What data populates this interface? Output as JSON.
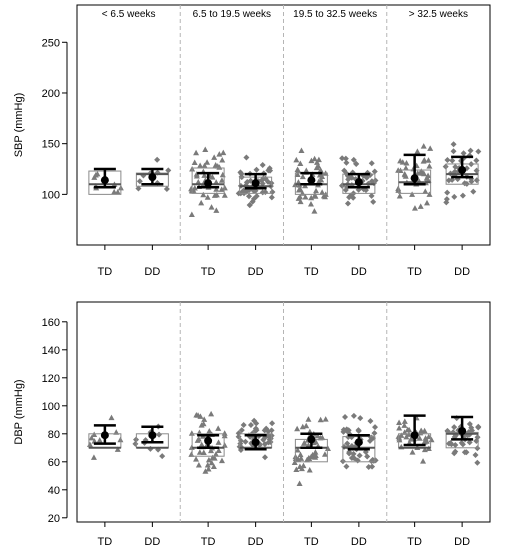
{
  "chart_data": [
    {
      "type": "boxplot",
      "ylabel": "SBP (mmHg)",
      "ylim": [
        55,
        270
      ],
      "yticks": [
        100,
        150,
        200,
        250
      ],
      "groups": [
        "< 6.5 weeks",
        "6.5 to 19.5 weeks",
        "19.5 to 32.5 weeks",
        "> 32.5 weeks"
      ],
      "categories": [
        "TD",
        "DD",
        "TD",
        "DD",
        "TD",
        "DD",
        "TD",
        "DD"
      ],
      "boxes": [
        {
          "group": "< 6.5 weeks",
          "category": "TD",
          "q1": 100,
          "median": 110,
          "q3": 123,
          "mean": 114,
          "ci_low": 107,
          "ci_high": 125
        },
        {
          "group": "< 6.5 weeks",
          "category": "DD",
          "q1": 108,
          "median": 120,
          "q3": 121,
          "mean": 117,
          "ci_low": 110,
          "ci_high": 125
        },
        {
          "group": "6.5 to 19.5 weeks",
          "category": "TD",
          "q1": 101,
          "median": 110,
          "q3": 126,
          "mean": 111,
          "ci_low": 107,
          "ci_high": 121
        },
        {
          "group": "6.5 to 19.5 weeks",
          "category": "DD",
          "q1": 101,
          "median": 108,
          "q3": 117,
          "mean": 111,
          "ci_low": 106,
          "ci_high": 120
        },
        {
          "group": "19.5 to 32.5 weeks",
          "category": "TD",
          "q1": 100,
          "median": 110,
          "q3": 121,
          "mean": 114,
          "ci_low": 110,
          "ci_high": 121
        },
        {
          "group": "19.5 to 32.5 weeks",
          "category": "DD",
          "q1": 101,
          "median": 110,
          "q3": 120,
          "mean": 112,
          "ci_low": 107,
          "ci_high": 120
        },
        {
          "group": "> 32.5 weeks",
          "category": "TD",
          "q1": 101,
          "median": 112,
          "q3": 124,
          "mean": 116,
          "ci_low": 110,
          "ci_high": 139
        },
        {
          "group": "> 32.5 weeks",
          "category": "DD",
          "q1": 110,
          "median": 120,
          "q3": 130,
          "mean": 124,
          "ci_low": 117,
          "ci_high": 137
        }
      ]
    },
    {
      "type": "boxplot",
      "ylabel": "DBP (mmHg)",
      "ylim": [
        17,
        167
      ],
      "yticks": [
        20,
        40,
        60,
        80,
        100,
        120,
        140,
        160
      ],
      "groups": [
        "< 6.5 weeks",
        "6.5 to 19.5 weeks",
        "19.5 to 32.5 weeks",
        "> 32.5 weeks"
      ],
      "categories": [
        "TD",
        "DD",
        "TD",
        "DD",
        "TD",
        "DD",
        "TD",
        "DD"
      ],
      "boxes": [
        {
          "group": "< 6.5 weeks",
          "category": "TD",
          "q1": 70,
          "median": 70,
          "q3": 80,
          "mean": 79,
          "ci_low": 73,
          "ci_high": 86
        },
        {
          "group": "< 6.5 weeks",
          "category": "DD",
          "q1": 70,
          "median": 70,
          "q3": 80,
          "mean": 79,
          "ci_low": 74,
          "ci_high": 85
        },
        {
          "group": "6.5 to 19.5 weeks",
          "category": "TD",
          "q1": 64,
          "median": 70,
          "q3": 80,
          "mean": 75,
          "ci_low": 70,
          "ci_high": 79
        },
        {
          "group": "6.5 to 19.5 weeks",
          "category": "DD",
          "q1": 70,
          "median": 70,
          "q3": 80,
          "mean": 74,
          "ci_low": 69,
          "ci_high": 79
        },
        {
          "group": "19.5 to 32.5 weeks",
          "category": "TD",
          "q1": 60,
          "median": 70,
          "q3": 76,
          "mean": 76,
          "ci_low": 70,
          "ci_high": 80
        },
        {
          "group": "19.5 to 32.5 weeks",
          "category": "DD",
          "q1": 60,
          "median": 70,
          "q3": 78,
          "mean": 74,
          "ci_low": 69,
          "ci_high": 79
        },
        {
          "group": "> 32.5 weeks",
          "category": "TD",
          "q1": 70,
          "median": 70,
          "q3": 80,
          "mean": 79,
          "ci_low": 72,
          "ci_high": 93
        },
        {
          "group": "> 32.5 weeks",
          "category": "DD",
          "q1": 70,
          "median": 80,
          "q3": 81,
          "mean": 82,
          "ci_low": 76,
          "ci_high": 92
        }
      ]
    }
  ]
}
